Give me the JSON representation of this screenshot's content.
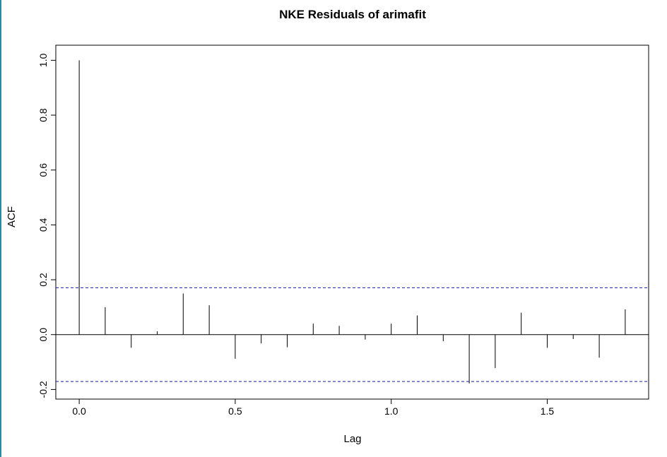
{
  "chart_data": {
    "type": "bar",
    "title": "NKE Residuals of arimafit",
    "xlabel": "Lag",
    "ylabel": "ACF",
    "xlim": [
      -0.075,
      1.825
    ],
    "ylim": [
      -0.235,
      1.055
    ],
    "x_ticks": [
      "0.0",
      "0.5",
      "1.0",
      "1.5"
    ],
    "y_ticks": [
      "-0.2",
      "0.0",
      "0.2",
      "0.4",
      "0.6",
      "0.8",
      "1.0"
    ],
    "confidence_bound": 0.171,
    "x": [
      0.0,
      0.0833,
      0.1667,
      0.25,
      0.3333,
      0.4167,
      0.5,
      0.5833,
      0.6667,
      0.75,
      0.8333,
      0.9167,
      1.0,
      1.0833,
      1.1667,
      1.25,
      1.3333,
      1.4167,
      1.5,
      1.5833,
      1.6667,
      1.75
    ],
    "values": [
      1.0,
      0.1,
      -0.048,
      0.012,
      0.15,
      0.107,
      -0.088,
      -0.032,
      -0.046,
      0.04,
      0.032,
      -0.018,
      0.04,
      0.07,
      -0.024,
      -0.178,
      -0.122,
      0.08,
      -0.048,
      -0.016,
      -0.084,
      0.092
    ],
    "grid": false,
    "colors": {
      "bars": "#000000",
      "bounds": "#1a1aa0",
      "frame": "#000000"
    }
  }
}
